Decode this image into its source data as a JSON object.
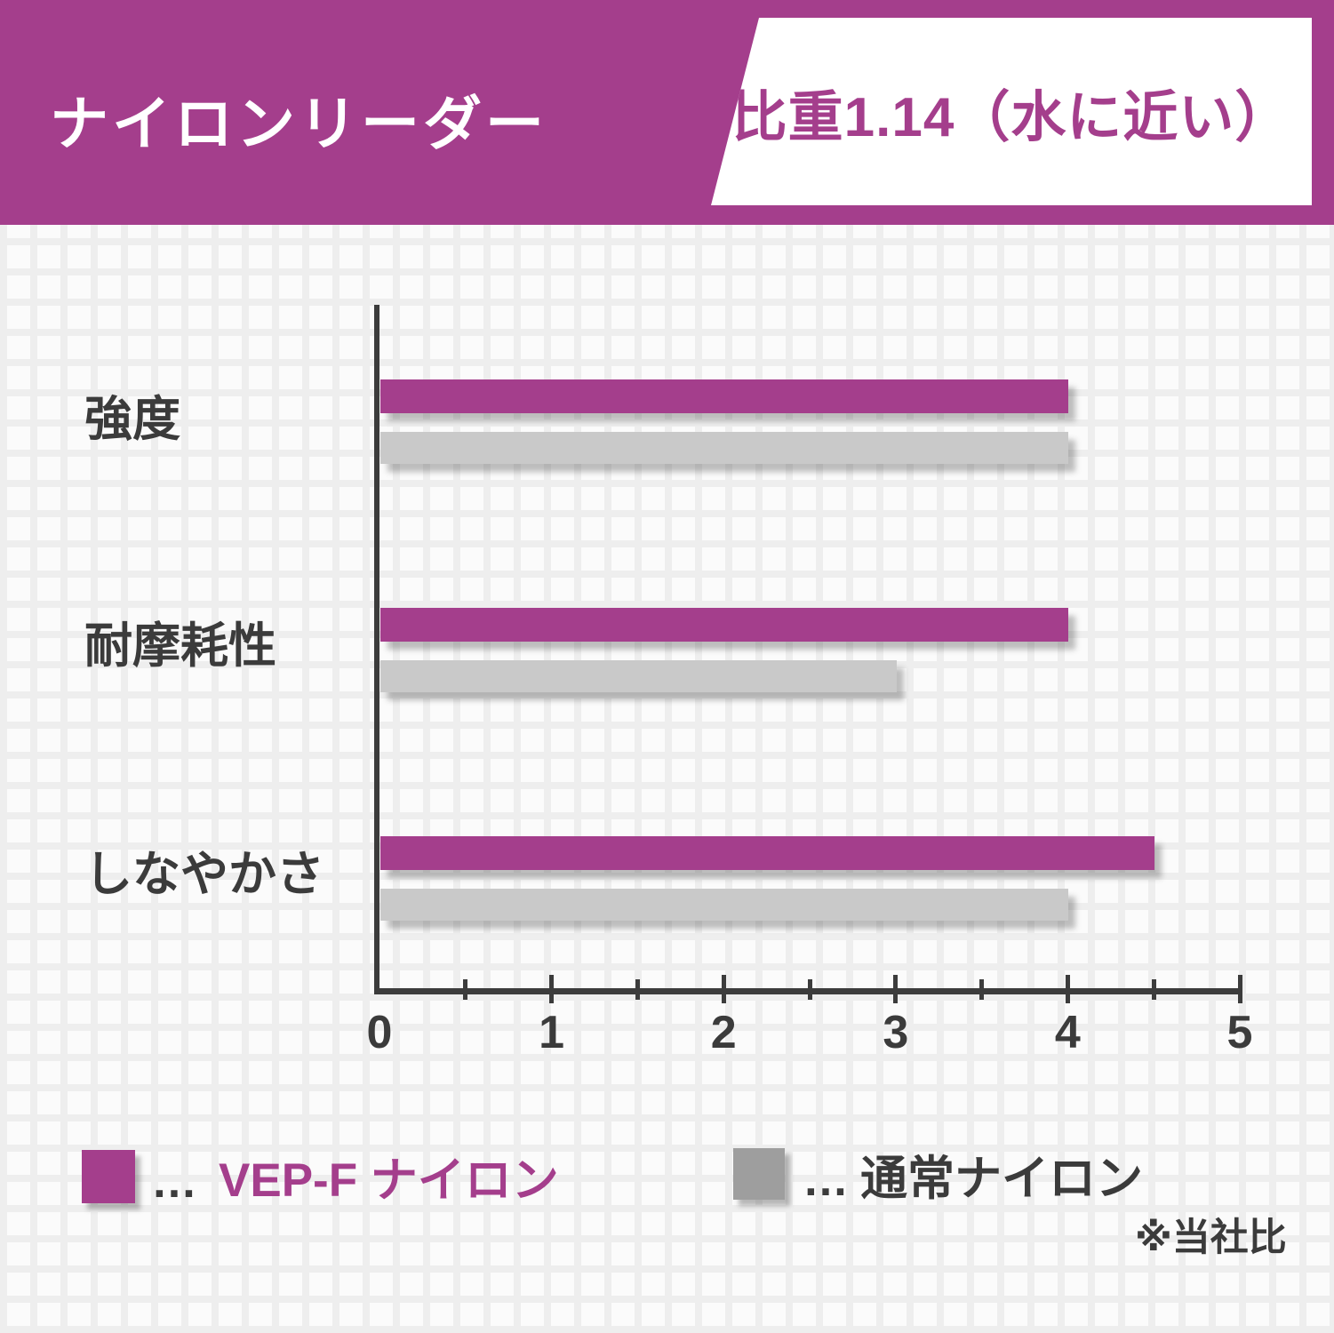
{
  "header": {
    "title": "ナイロンリーダー",
    "badge": "比重1.14（水に近い）"
  },
  "colors": {
    "brand_purple": "#A43E8C",
    "bar_gray": "#C9C9C9",
    "legend_gray": "#9E9E9E",
    "axis_dark": "#3C3C3C",
    "text_dark": "#3B3B3B",
    "header_text": "#FFFFFF",
    "badge_background": "#FFFFFF"
  },
  "chart_data": {
    "type": "bar",
    "orientation": "horizontal",
    "categories": [
      "強度",
      "耐摩耗性",
      "しなやかさ"
    ],
    "series": [
      {
        "name": "VEP-F ナイロン",
        "color": "#A43E8C",
        "values": [
          4,
          4,
          4.5
        ]
      },
      {
        "name": "通常ナイロン",
        "color": "#C9C9C9",
        "values": [
          4,
          3,
          4
        ]
      }
    ],
    "xlim": [
      0,
      5
    ],
    "x_ticks": [
      0,
      1,
      2,
      3,
      4,
      5
    ],
    "x_minor_tick_step": 0.5,
    "grid": false,
    "legend_position": "bottom",
    "title": "ナイロンリーダー",
    "xlabel": "",
    "ylabel": ""
  },
  "legend": {
    "items": [
      {
        "separator": "…",
        "label": "VEP-F ナイロン",
        "swatch_color": "#A43E8C",
        "text_color": "#A43E8C"
      },
      {
        "separator": "…",
        "label": "通常ナイロン",
        "swatch_color": "#9E9E9E",
        "text_color": "#3B3B3B"
      }
    ],
    "note": "※当社比"
  }
}
